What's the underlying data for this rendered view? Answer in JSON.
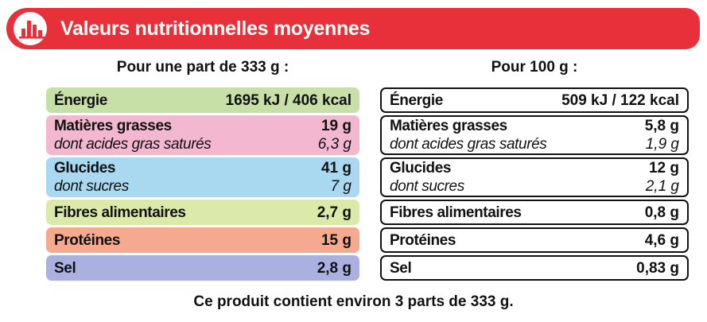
{
  "header": {
    "title": "Valeurs nutritionnelles moyennes"
  },
  "columns": [
    {
      "heading": "Pour une part de 333 g :",
      "rows": [
        {
          "label": "Énergie",
          "value": "1695 kJ / 406 kcal"
        },
        {
          "label": "Matières grasses",
          "value": "19 g",
          "sub_label": "dont acides gras saturés",
          "sub_value": "6,3 g"
        },
        {
          "label": "Glucides",
          "value": "41 g",
          "sub_label": "dont sucres",
          "sub_value": "7 g"
        },
        {
          "label": "Fibres alimentaires",
          "value": "2,7 g"
        },
        {
          "label": "Protéines",
          "value": "15 g"
        },
        {
          "label": "Sel",
          "value": "2,8 g"
        }
      ]
    },
    {
      "heading": "Pour 100 g :",
      "rows": [
        {
          "label": "Énergie",
          "value": "509 kJ / 122 kcal"
        },
        {
          "label": "Matières grasses",
          "value": "5,8 g",
          "sub_label": "dont acides gras saturés",
          "sub_value": "1,9 g"
        },
        {
          "label": "Glucides",
          "value": "12 g",
          "sub_label": "dont sucres",
          "sub_value": "2,1 g"
        },
        {
          "label": "Fibres alimentaires",
          "value": "0,8 g"
        },
        {
          "label": "Protéines",
          "value": "4,6 g"
        },
        {
          "label": "Sel",
          "value": "0,83 g"
        }
      ]
    }
  ],
  "footer": "Ce produit contient environ 3 parts de 333 g."
}
